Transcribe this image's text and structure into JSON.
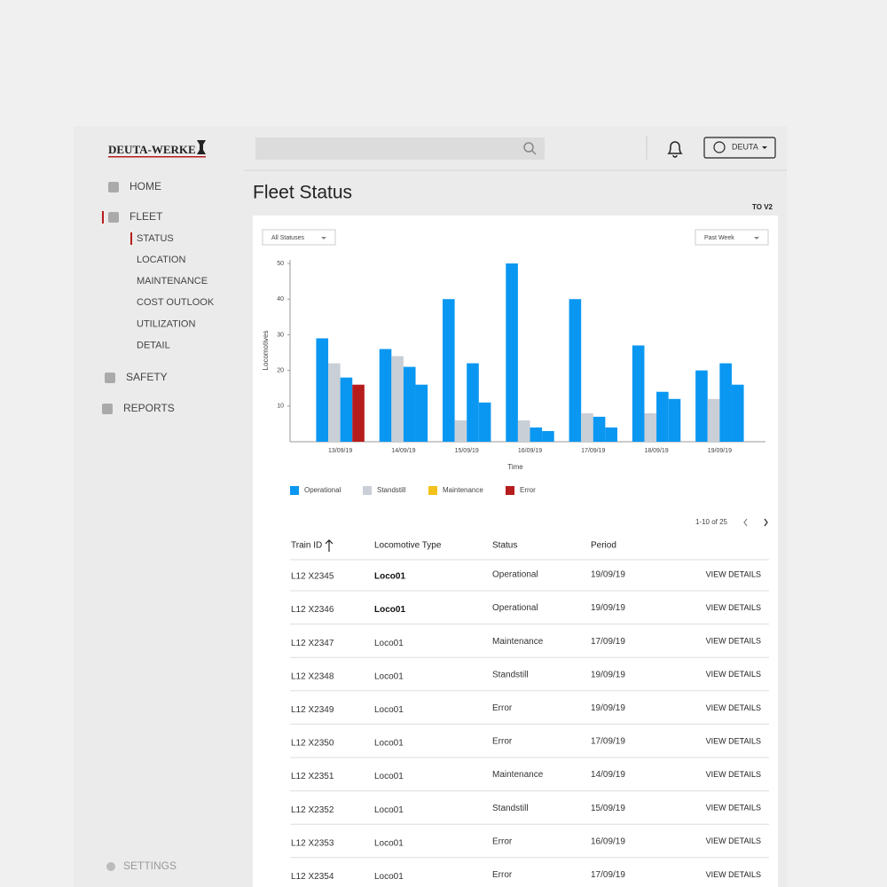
{
  "header": {
    "brand": "DEUTA-WERKE",
    "user": "DEUTA"
  },
  "nav": {
    "items": [
      {
        "label": "HOME"
      },
      {
        "label": "FLEET",
        "children": [
          "STATUS",
          "LOCATION",
          "MAINTENANCE",
          "COST OUTLOOK",
          "UTILIZATION",
          "DETAIL"
        ]
      },
      {
        "label": "SAFETY"
      },
      {
        "label": "REPORTS"
      }
    ],
    "settings": "SETTINGS"
  },
  "page": {
    "title": "Fleet Status",
    "badge": "TO V2",
    "filters": [
      "All Statuses",
      "Past Week"
    ]
  },
  "chart_data": {
    "type": "bar",
    "x_label": "Time",
    "y_label": "Locomotives",
    "categories": [
      "13/09/19",
      "14/09/19",
      "15/09/19",
      "16/09/19",
      "17/09/19",
      "18/09/19",
      "19/09/19"
    ],
    "ylim": [
      0,
      51
    ],
    "yticks": [
      10,
      20,
      30,
      40,
      50
    ],
    "series": [
      {
        "name": "Operational",
        "color": "#0a97f2",
        "values": [
          29,
          26,
          40,
          50,
          40,
          27,
          20
        ]
      },
      {
        "name": "Standstill",
        "color": "#c9cfd6",
        "values": [
          22,
          24,
          6,
          6,
          8,
          8,
          12
        ]
      },
      {
        "name": "Maintenance",
        "color": "#f3c11b",
        "values": [
          18,
          21,
          22,
          4,
          7,
          14,
          22
        ],
        "colors": [
          "#0a97f2",
          "#0a97f2",
          "#0a97f2",
          "#0a97f2",
          "#0a97f2",
          "#0a97f2",
          "#0a97f2"
        ]
      },
      {
        "name": "Error",
        "color": "#b71c1c",
        "values": [
          16,
          16,
          11,
          3,
          4,
          12,
          16
        ],
        "colors": [
          "#b71c1c",
          "#0a97f2",
          "#0a97f2",
          "#0a97f2",
          "#0a97f2",
          "#0a97f2",
          "#0a97f2"
        ]
      }
    ]
  },
  "table": {
    "pagination": "1-10 of 25",
    "columns": [
      "Train ID",
      "Locomotive Type",
      "Status",
      "Period"
    ],
    "rows": [
      [
        "L12 X2345",
        "Loco01",
        "Operational",
        "19/09/19",
        "VIEW DETAILS"
      ],
      [
        "L12 X2346",
        "Loco01",
        "Operational",
        "19/09/19",
        "VIEW DETAILS"
      ],
      [
        "L12 X2347",
        "Loco01",
        "Maintenance",
        "17/09/19",
        "VIEW DETAILS"
      ],
      [
        "L12 X2348",
        "Loco01",
        "Standstill",
        "19/09/19",
        "VIEW DETAILS"
      ],
      [
        "L12 X2349",
        "Loco01",
        "Error",
        "19/09/19",
        "VIEW DETAILS"
      ],
      [
        "L12 X2350",
        "Loco01",
        "Error",
        "17/09/19",
        "VIEW DETAILS"
      ],
      [
        "L12 X2351",
        "Loco01",
        "Maintenance",
        "14/09/19",
        "VIEW DETAILS"
      ],
      [
        "L12 X2352",
        "Loco01",
        "Standstill",
        "15/09/19",
        "VIEW DETAILS"
      ],
      [
        "L12 X2353",
        "Loco01",
        "Error",
        "16/09/19",
        "VIEW DETAILS"
      ],
      [
        "L12 X2354",
        "Loco01",
        "Error",
        "17/09/19",
        "VIEW DETAILS"
      ]
    ]
  }
}
